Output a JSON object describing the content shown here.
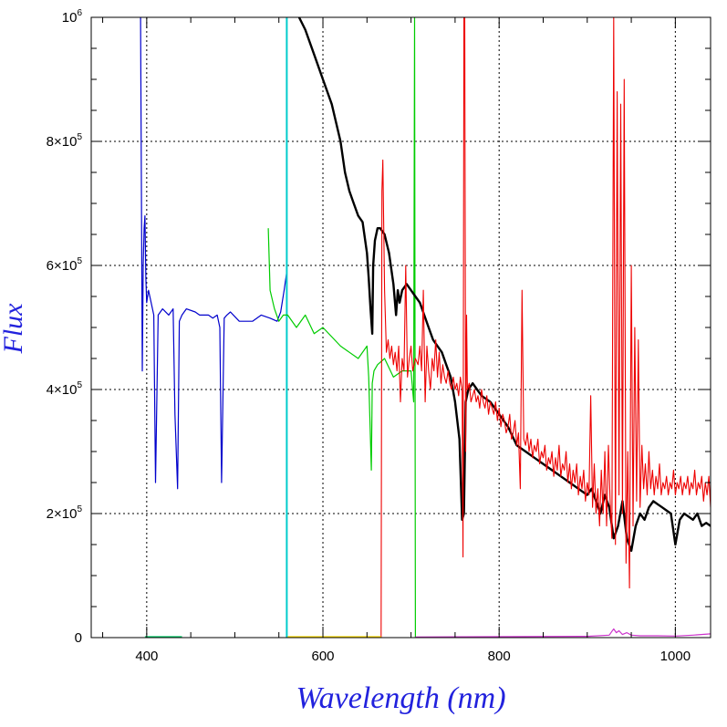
{
  "chart_data": {
    "type": "line",
    "xlabel": "Wavelength (nm)",
    "ylabel": "Flux",
    "xlim": [
      337,
      1040
    ],
    "ylim": [
      0,
      1000000
    ],
    "grid": true,
    "x_ticks": [
      400,
      600,
      800,
      1000
    ],
    "x_tick_labels": [
      "400",
      "600",
      "800",
      "1000"
    ],
    "y_ticks": [
      0,
      200000,
      400000,
      600000,
      800000,
      1000000
    ],
    "y_tick_labels": [
      {
        "mant": "0",
        "exp": ""
      },
      {
        "mant": "2×10",
        "exp": "5"
      },
      {
        "mant": "4×10",
        "exp": "5"
      },
      {
        "mant": "6×10",
        "exp": "5"
      },
      {
        "mant": "8×10",
        "exp": "5"
      },
      {
        "mant": "10",
        "exp": "6"
      }
    ],
    "series": [
      {
        "color": "#0000cc",
        "width": 1.2,
        "x": [
          393,
          395,
          396,
          397,
          398,
          399,
          400,
          402,
          405,
          408,
          410,
          413,
          418,
          425,
          430,
          432,
          435,
          437,
          440,
          445,
          455,
          460,
          470,
          475,
          480,
          483,
          485,
          488,
          491,
          495,
          505,
          520,
          530,
          540,
          548,
          552,
          556,
          559
        ],
        "y": [
          1000000,
          430000,
          600000,
          660000,
          680000,
          580000,
          540000,
          560000,
          540000,
          520000,
          250000,
          520000,
          530000,
          520000,
          530000,
          360000,
          240000,
          510000,
          520000,
          530000,
          525000,
          520000,
          520000,
          515000,
          520000,
          500000,
          250000,
          515000,
          520000,
          525000,
          510000,
          510000,
          520000,
          515000,
          510000,
          525000,
          560000,
          590000
        ]
      },
      {
        "color": "#00cccc",
        "width": 2,
        "x": [
          559,
          559
        ],
        "y": [
          0,
          1000000
        ]
      },
      {
        "color": "#00cc00",
        "width": 1.2,
        "x": [
          538,
          540,
          545,
          550,
          555,
          560,
          570,
          580,
          590,
          600,
          620,
          640,
          650,
          652,
          655,
          656,
          658,
          662,
          670,
          680,
          690,
          700,
          703,
          704,
          705
        ],
        "y": [
          660000,
          560000,
          530000,
          510000,
          520000,
          520000,
          500000,
          520000,
          490000,
          500000,
          470000,
          450000,
          470000,
          420000,
          270000,
          410000,
          430000,
          440000,
          450000,
          420000,
          430000,
          430000,
          380000,
          1000000,
          0
        ]
      },
      {
        "color": "#000000",
        "width": 2.4,
        "x": [
          573,
          580,
          590,
          600,
          610,
          615,
          620,
          625,
          630,
          635,
          640,
          645,
          650,
          652,
          654,
          656,
          657,
          659,
          662,
          665,
          670,
          675,
          680,
          683,
          685,
          687,
          690,
          695,
          700,
          705,
          710,
          715,
          720,
          725,
          730,
          735,
          740,
          745,
          750,
          755,
          758,
          760,
          762,
          765,
          770,
          775,
          780,
          790,
          800,
          810,
          820,
          830,
          840,
          850,
          860,
          870,
          880,
          890,
          900,
          905,
          910,
          915,
          920,
          925,
          930,
          935,
          940,
          945,
          950,
          955,
          960,
          965,
          970,
          975,
          980,
          985,
          990,
          995,
          1000,
          1005,
          1010,
          1015,
          1020,
          1025,
          1030,
          1035,
          1040
        ],
        "y": [
          1000000,
          980000,
          940000,
          900000,
          860000,
          830000,
          800000,
          750000,
          720000,
          700000,
          680000,
          670000,
          620000,
          580000,
          530000,
          490000,
          600000,
          640000,
          660000,
          660000,
          650000,
          620000,
          570000,
          520000,
          560000,
          540000,
          560000,
          570000,
          560000,
          550000,
          540000,
          520000,
          500000,
          480000,
          470000,
          460000,
          440000,
          420000,
          380000,
          320000,
          190000,
          200000,
          380000,
          400000,
          410000,
          400000,
          390000,
          380000,
          360000,
          340000,
          310000,
          300000,
          290000,
          280000,
          270000,
          260000,
          250000,
          240000,
          230000,
          240000,
          220000,
          200000,
          230000,
          210000,
          160000,
          180000,
          220000,
          160000,
          140000,
          180000,
          200000,
          190000,
          210000,
          220000,
          215000,
          210000,
          205000,
          200000,
          150000,
          190000,
          200000,
          195000,
          190000,
          200000,
          180000,
          185000,
          180000
        ]
      },
      {
        "color": "#ee0000",
        "width": 1.1,
        "x": [
          666,
          667,
          668,
          670,
          672,
          674,
          676,
          678,
          680,
          682,
          684,
          686,
          688,
          690,
          692,
          694,
          696,
          698,
          700,
          702,
          705,
          708,
          710,
          712,
          714,
          716,
          718,
          720,
          722,
          724,
          726,
          728,
          730,
          732,
          734,
          736,
          738,
          740,
          742,
          744,
          746,
          748,
          750,
          752,
          754,
          756,
          758,
          759,
          760,
          761,
          762,
          763,
          764,
          766,
          768,
          770,
          772,
          774,
          776,
          778,
          780,
          782,
          784,
          786,
          788,
          790,
          792,
          794,
          796,
          798,
          800,
          802,
          804,
          806,
          808,
          810,
          812,
          814,
          816,
          818,
          820,
          822,
          824,
          826,
          828,
          830,
          832,
          834,
          836,
          838,
          840,
          842,
          844,
          846,
          848,
          850,
          852,
          854,
          856,
          858,
          860,
          862,
          864,
          866,
          868,
          870,
          872,
          874,
          876,
          878,
          880,
          882,
          884,
          886,
          888,
          890,
          892,
          894,
          896,
          898,
          900,
          902,
          904,
          906,
          908,
          910,
          912,
          914,
          916,
          918,
          920,
          922,
          924,
          926,
          928,
          930,
          932,
          934,
          936,
          938,
          940,
          942,
          944,
          946,
          948,
          950,
          952,
          954,
          956,
          958,
          960,
          962,
          964,
          966,
          968,
          970,
          972,
          974,
          976,
          978,
          980,
          982,
          984,
          986,
          988,
          990,
          992,
          994,
          996,
          998,
          1000,
          1002,
          1004,
          1006,
          1008,
          1010,
          1012,
          1014,
          1016,
          1018,
          1020,
          1022,
          1024,
          1026,
          1028,
          1030,
          1032,
          1034,
          1036,
          1038,
          1040
        ],
        "y": [
          0,
          720000,
          770000,
          560000,
          460000,
          480000,
          450000,
          470000,
          440000,
          460000,
          430000,
          470000,
          380000,
          450000,
          430000,
          600000,
          420000,
          450000,
          470000,
          430000,
          450000,
          440000,
          470000,
          430000,
          560000,
          380000,
          470000,
          430000,
          400000,
          450000,
          430000,
          480000,
          420000,
          460000,
          410000,
          440000,
          420000,
          410000,
          430000,
          410000,
          400000,
          420000,
          400000,
          410000,
          390000,
          420000,
          400000,
          130000,
          1000000,
          1000000,
          300000,
          520000,
          400000,
          410000,
          380000,
          390000,
          400000,
          380000,
          390000,
          370000,
          400000,
          380000,
          370000,
          390000,
          360000,
          380000,
          370000,
          360000,
          380000,
          350000,
          370000,
          340000,
          360000,
          350000,
          330000,
          340000,
          360000,
          320000,
          330000,
          350000,
          310000,
          330000,
          240000,
          560000,
          320000,
          310000,
          330000,
          300000,
          320000,
          290000,
          310000,
          300000,
          320000,
          280000,
          300000,
          290000,
          310000,
          270000,
          290000,
          280000,
          300000,
          260000,
          290000,
          270000,
          310000,
          260000,
          280000,
          270000,
          300000,
          250000,
          280000,
          240000,
          270000,
          250000,
          280000,
          230000,
          260000,
          240000,
          270000,
          220000,
          250000,
          230000,
          390000,
          210000,
          280000,
          200000,
          240000,
          180000,
          270000,
          200000,
          300000,
          180000,
          310000,
          220000,
          160000,
          1000000,
          150000,
          880000,
          230000,
          860000,
          200000,
          900000,
          120000,
          300000,
          80000,
          600000,
          180000,
          500000,
          220000,
          480000,
          210000,
          310000,
          240000,
          280000,
          230000,
          300000,
          240000,
          270000,
          230000,
          260000,
          240000,
          280000,
          230000,
          250000,
          240000,
          260000,
          230000,
          250000,
          240000,
          270000,
          230000,
          250000,
          240000,
          260000,
          230000,
          250000,
          240000,
          260000,
          230000,
          250000,
          240000,
          270000,
          230000,
          250000,
          240000,
          260000,
          220000,
          250000,
          230000,
          260000,
          210000
        ]
      },
      {
        "color": "#ffdd00",
        "width": 1.2,
        "x": [
          560,
          666
        ],
        "y": [
          1500,
          1500
        ]
      },
      {
        "color": "#00cc66",
        "width": 1.2,
        "x": [
          398,
          440
        ],
        "y": [
          1500,
          1500
        ]
      },
      {
        "color": "#cc33cc",
        "width": 1.2,
        "x": [
          705,
          900,
          925,
          928,
          930,
          933,
          936,
          940,
          945,
          950,
          960,
          980,
          1000,
          1020,
          1040
        ],
        "y": [
          1000,
          2000,
          4000,
          10000,
          14000,
          8000,
          11000,
          5000,
          8000,
          4000,
          3000,
          3000,
          2500,
          4000,
          6000
        ]
      }
    ]
  }
}
